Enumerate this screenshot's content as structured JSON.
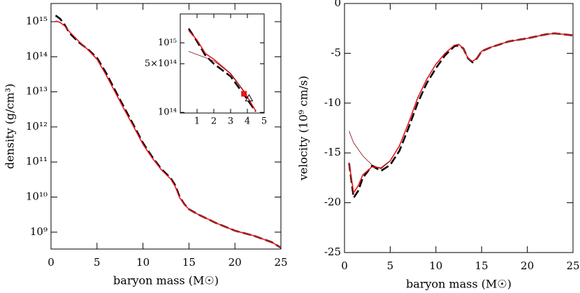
{
  "chart_data": [
    {
      "type": "line",
      "xlabel": "baryon mass (M☉)",
      "ylabel": "density (g/cm³)",
      "log_y": true,
      "xlim": [
        0,
        25
      ],
      "xticks": [
        0,
        5,
        10,
        15,
        20,
        25
      ],
      "ylim": [
        330000000.0,
        3300000000000000.0
      ],
      "yticks": [
        {
          "value": 1000000000.0,
          "label": "10⁹"
        },
        {
          "value": 10000000000.0,
          "label": "10¹⁰"
        },
        {
          "value": 100000000000.0,
          "label": "10¹¹"
        },
        {
          "value": 1000000000000.0,
          "label": "10¹²"
        },
        {
          "value": 10000000000000.0,
          "label": "10¹³"
        },
        {
          "value": 100000000000000.0,
          "label": "10¹⁴"
        },
        {
          "value": 1000000000000000.0,
          "label": "10¹⁵"
        }
      ],
      "series": [
        {
          "color": "#000000",
          "dashed": true,
          "width": 2.6,
          "x": [
            0.5,
            1,
            1.5,
            2,
            3,
            4,
            5,
            6,
            7,
            8,
            9,
            10,
            11,
            12,
            13,
            13.5,
            14,
            14.5,
            15,
            16,
            18,
            20,
            22,
            24,
            25
          ],
          "values": [
            1500000000000000.0,
            1200000000000000.0,
            800000000000000.0,
            480000000000000.0,
            260000000000000.0,
            165000000000000.0,
            93000000000000.0,
            34000000000000.0,
            10700000000000.0,
            3400000000000.0,
            1100000000000.0,
            350000000000.0,
            140000000000.0,
            63000000000.0,
            35000000000.0,
            22000000000.0,
            10000000000.0,
            6300000000.0,
            4500000000.0,
            3200000000.0,
            1800000000.0,
            1100000000.0,
            800000000.0,
            520000000.0,
            360000000.0
          ]
        },
        {
          "color": "#e8141c",
          "dashed": false,
          "width": 1.6,
          "x": [
            0.5,
            1,
            1.5,
            2,
            3,
            4,
            5,
            6,
            7,
            8,
            9,
            10,
            11,
            12,
            13,
            13.5,
            14,
            14.5,
            15,
            16,
            18,
            20,
            22,
            24,
            25
          ],
          "values": [
            1050000000000000.0,
            950000000000000.0,
            750000000000000.0,
            520000000000000.0,
            280000000000000.0,
            160000000000000.0,
            85000000000000.0,
            30000000000000.0,
            9500000000000.0,
            3000000000000.0,
            1000000000000.0,
            320000000000.0,
            130000000000.0,
            60000000000.0,
            33000000000.0,
            20000000000.0,
            9500000000.0,
            6200000000.0,
            4500000000.0,
            3200000000.0,
            1800000000.0,
            1100000000.0,
            800000000.0,
            520000000.0,
            360000000.0
          ]
        }
      ]
    },
    {
      "type": "line",
      "log_y": true,
      "xlim": [
        0,
        5
      ],
      "xticks": [
        1,
        2,
        3,
        4,
        5
      ],
      "ylim": [
        98000000000000.0,
        2600000000000000.0
      ],
      "yticks": [
        {
          "value": 100000000000000.0,
          "label": "10¹⁴"
        },
        {
          "value": 500000000000000.0,
          "label": "5×10¹⁴"
        },
        {
          "value": 1000000000000000.0,
          "label": "10¹⁵"
        }
      ],
      "series": [
        {
          "color": "#000000",
          "dashed": true,
          "width": 2.6,
          "x": [
            0.5,
            1,
            1.5,
            2,
            3,
            3.8,
            4.5
          ],
          "values": [
            1600000000000000.0,
            1050000000000000.0,
            660000000000000.0,
            500000000000000.0,
            330000000000000.0,
            180000000000000.0,
            103000000000000.0
          ]
        },
        {
          "color": "#e8141c",
          "dashed": false,
          "width": 1.6,
          "x": [
            0.5,
            1,
            1.5,
            2,
            3,
            3.8,
            4.5
          ],
          "values": [
            1500000000000000.0,
            1100000000000000.0,
            700000000000000.0,
            580000000000000.0,
            360000000000000.0,
            200000000000000.0,
            105000000000000.0
          ]
        },
        {
          "color": "#7a1010",
          "dashed": false,
          "width": 0.8,
          "x": [
            0.5,
            1,
            2,
            3,
            3.8
          ],
          "values": [
            750000000000000.0,
            680000000000000.0,
            550000000000000.0,
            360000000000000.0,
            200000000000000.0
          ]
        }
      ],
      "markers": [
        {
          "x": 3.8,
          "y": 185000000000000.0,
          "shape": "square",
          "color": "#e8141c"
        },
        {
          "x": 4.1,
          "y": 160000000000000.0,
          "shape": "triangle",
          "color": "#000000"
        }
      ]
    },
    {
      "type": "line",
      "xlabel": "baryon mass (M☉)",
      "ylabel": "velocity (10⁹ cm/s)",
      "log_y": false,
      "xlim": [
        0,
        25
      ],
      "xticks": [
        0,
        5,
        10,
        15,
        20,
        25
      ],
      "ylim": [
        -25,
        0
      ],
      "yticks": [
        -25,
        -20,
        -15,
        -10,
        -5,
        0
      ],
      "series": [
        {
          "color": "#000000",
          "dashed": true,
          "width": 2.6,
          "x": [
            0.5,
            1,
            1.5,
            2,
            3,
            4,
            5,
            6,
            7,
            8,
            9,
            10,
            11,
            12,
            12.5,
            13,
            13.5,
            14,
            14.5,
            15,
            16,
            18,
            20,
            22,
            23,
            24,
            25
          ],
          "values": [
            -16,
            -19.5,
            -18.8,
            -17.5,
            -16.3,
            -16.8,
            -16.2,
            -14.8,
            -12.5,
            -10,
            -8,
            -6.5,
            -5.2,
            -4.3,
            -4.2,
            -4.5,
            -5.5,
            -5.9,
            -5.5,
            -4.8,
            -4.4,
            -3.8,
            -3.5,
            -3.1,
            -3,
            -3.1,
            -3.2
          ]
        },
        {
          "color": "#e8141c",
          "dashed": false,
          "width": 1.6,
          "x": [
            0.5,
            1,
            1.5,
            2,
            3,
            4,
            5,
            6,
            7,
            8,
            9,
            10,
            11,
            12,
            12.5,
            13,
            13.5,
            14,
            14.5,
            15,
            16,
            18,
            20,
            22,
            23,
            24,
            25
          ],
          "values": [
            -16,
            -19,
            -18.3,
            -17.2,
            -16.4,
            -16.5,
            -15.8,
            -14.3,
            -12,
            -9.5,
            -7.6,
            -6.1,
            -5,
            -4.2,
            -4.1,
            -4.5,
            -5.5,
            -5.8,
            -5.5,
            -4.8,
            -4.4,
            -3.8,
            -3.5,
            -3.1,
            -3,
            -3.1,
            -3.2
          ]
        },
        {
          "color": "#7a1010",
          "dashed": false,
          "width": 0.8,
          "x": [
            0.5,
            1,
            2,
            3,
            4,
            5
          ],
          "values": [
            -12.8,
            -14,
            -15.3,
            -16.2,
            -16.6,
            -15.8
          ]
        }
      ]
    }
  ]
}
